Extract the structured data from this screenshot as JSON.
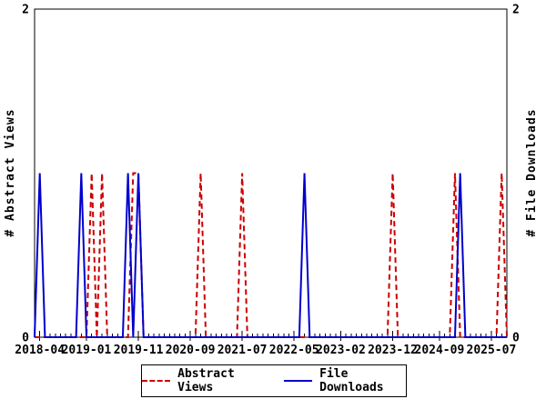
{
  "figure": {
    "background": "#ffffff",
    "border_color": "#000000",
    "text_color": "#000000"
  },
  "chart_data": {
    "type": "line",
    "title": "",
    "ylabel_left": "# Abstract Views",
    "ylabel_right": "# File Downloads",
    "y_min": 0,
    "y_max": 2,
    "y_ticks": [
      {
        "value": 0,
        "label": "0"
      },
      {
        "value": 2,
        "label": "2"
      }
    ],
    "x_start_month": "2018-03",
    "x_end_month": "2025-10",
    "months_total": 92,
    "x_ticks": [
      {
        "month_index": 1,
        "label": "2018-04"
      },
      {
        "month_index": 10,
        "label": "2019-01"
      },
      {
        "month_index": 20,
        "label": "2019-11"
      },
      {
        "month_index": 30,
        "label": "2020-09"
      },
      {
        "month_index": 40,
        "label": "2021-07"
      },
      {
        "month_index": 50,
        "label": "2022-05"
      },
      {
        "month_index": 59,
        "label": "2023-02"
      },
      {
        "month_index": 69,
        "label": "2023-12"
      },
      {
        "month_index": 78,
        "label": "2024-09"
      },
      {
        "month_index": 88,
        "label": "2025-07"
      }
    ],
    "minor_tick_interval_months": 1,
    "grid": false,
    "legend_position": "bottom-center",
    "series": [
      {
        "name": "Abstract Views",
        "color": "#cc0000",
        "style": "dashed",
        "baseline_value": 0,
        "peak_value": 1,
        "nonzero_months": [
          "2019-02",
          "2019-04",
          "2019-10",
          "2019-11",
          "2020-11",
          "2021-07",
          "2023-12",
          "2024-12",
          "2025-09"
        ],
        "nonzero_month_indices": [
          11,
          13,
          19,
          20,
          32,
          40,
          69,
          81,
          90
        ]
      },
      {
        "name": "File Downloads",
        "color": "#0000cc",
        "style": "solid",
        "baseline_value": 0,
        "peak_value": 1,
        "nonzero_months": [
          "2018-04",
          "2018-12",
          "2019-09",
          "2019-11",
          "2022-07",
          "2025-01"
        ],
        "nonzero_month_indices": [
          1,
          9,
          18,
          20,
          52,
          82
        ]
      }
    ]
  },
  "legend": {
    "abstract_views_label": "Abstract Views",
    "file_downloads_label": "File Downloads"
  }
}
